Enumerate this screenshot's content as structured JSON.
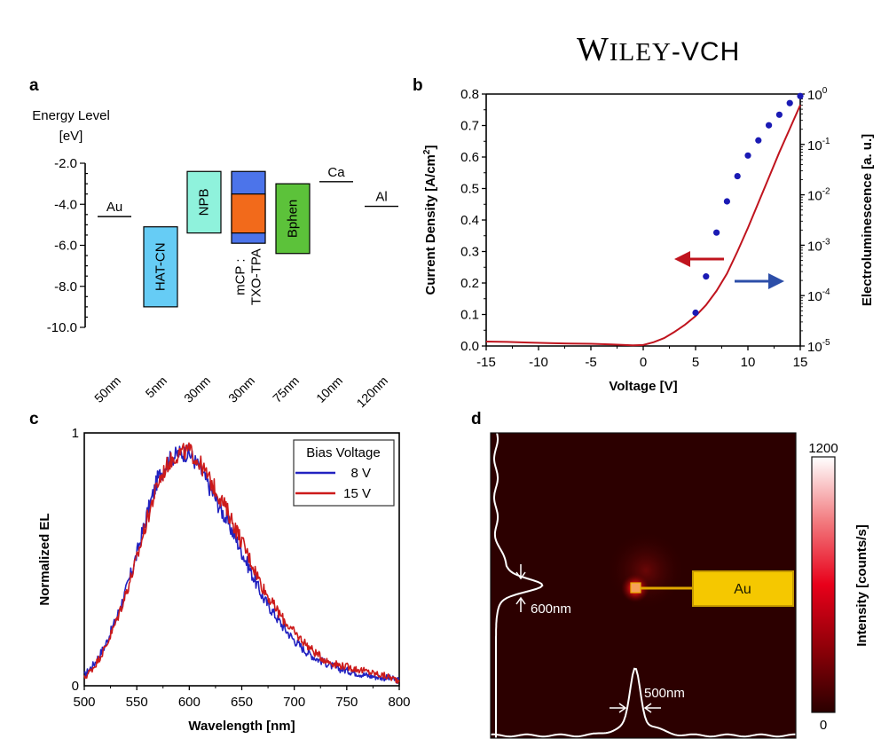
{
  "header": {
    "publisher_w": "W",
    "publisher_iley": "ILEY",
    "publisher_vch": "-VCH"
  },
  "panels": {
    "a": "a",
    "b": "b",
    "c": "c",
    "d": "d"
  },
  "chart_data": [
    {
      "id": "a",
      "type": "diagram",
      "title": "Energy Level [eV]",
      "ylabel_line1": "Energy Level",
      "ylabel_line2": "[eV]",
      "ylim": [
        -10.0,
        -2.0
      ],
      "yticks": [
        -2.0,
        -4.0,
        -6.0,
        -8.0,
        -10.0
      ],
      "ytick_labels": [
        "-2.0",
        "-4.0",
        "-6.0",
        "-8.0",
        "-10.0"
      ],
      "layers": [
        {
          "name": "Au",
          "kind": "line",
          "level": -4.6,
          "thickness": "50nm"
        },
        {
          "name": "HAT-CN",
          "kind": "box",
          "top": -5.1,
          "bottom": -9.0,
          "color": "#66ccf5",
          "thickness": "5nm"
        },
        {
          "name": "NPB",
          "kind": "box",
          "top": -2.4,
          "bottom": -5.4,
          "color": "#8ff2dc",
          "thickness": "30nm"
        },
        {
          "name": "mCP : TXO-TPA",
          "kind": "stacked",
          "top": -2.4,
          "bottom": -5.9,
          "color": "#4c74ea",
          "inner_top": -3.5,
          "inner_bottom": -5.4,
          "inner_color": "#f26a1b",
          "label_line1": "mCP :",
          "label_line2": "TXO-TPA",
          "thickness": "30nm"
        },
        {
          "name": "Bphen",
          "kind": "box",
          "top": -3.0,
          "bottom": -6.4,
          "color": "#5cc23a",
          "thickness": "75nm"
        },
        {
          "name": "Ca",
          "kind": "line",
          "level": -2.9,
          "thickness": "10nm"
        },
        {
          "name": "Al",
          "kind": "line",
          "level": -4.1,
          "thickness": "120nm"
        }
      ]
    },
    {
      "id": "b",
      "type": "line",
      "xlabel": "Voltage [V]",
      "ylabel": "Current Density [A/cm",
      "ylabel_sup": "2",
      "ylabel_end": "]",
      "y2label": "Electroluminescence [a. u.]",
      "xlim": [
        -15,
        15
      ],
      "ylim": [
        0.0,
        0.8
      ],
      "y2lim_log10": [
        -5,
        0
      ],
      "xticks": [
        -15,
        -10,
        -5,
        0,
        5,
        10,
        15
      ],
      "xtick_labels": [
        "-15",
        "-10",
        "-5",
        "0",
        "5",
        "10",
        "15"
      ],
      "yticks": [
        0.0,
        0.1,
        0.2,
        0.3,
        0.4,
        0.5,
        0.6,
        0.7,
        0.8
      ],
      "ytick_labels": [
        "0.0",
        "0.1",
        "0.2",
        "0.3",
        "0.4",
        "0.5",
        "0.6",
        "0.7",
        "0.8"
      ],
      "y2ticks_exp": [
        0,
        -1,
        -2,
        -3,
        -4,
        -5
      ],
      "y2tick_base": "10",
      "y2tick_exp_labels": [
        "0",
        "-1",
        "-2",
        "-3",
        "-4",
        "-5"
      ],
      "series": [
        {
          "name": "Current Density",
          "axis": "left",
          "color": "#c0141e",
          "x": [
            -15,
            -13,
            -11,
            -9,
            -7,
            -5,
            -3,
            -1,
            0,
            1,
            2,
            3,
            4,
            5,
            6,
            7,
            8,
            9,
            10,
            11,
            12,
            13,
            14,
            15
          ],
          "y": [
            0.014,
            0.013,
            0.011,
            0.009,
            0.008,
            0.007,
            0.005,
            0.002,
            0.003,
            0.012,
            0.025,
            0.045,
            0.068,
            0.095,
            0.13,
            0.175,
            0.23,
            0.3,
            0.375,
            0.455,
            0.535,
            0.615,
            0.69,
            0.765
          ]
        },
        {
          "name": "Electroluminescence",
          "axis": "right",
          "color": "#1a1ab4",
          "marker": "circle",
          "x": [
            5,
            6,
            7,
            8,
            9,
            10,
            11,
            12,
            13,
            14,
            15
          ],
          "log10_y": [
            -4.34,
            -3.62,
            -2.75,
            -2.13,
            -1.63,
            -1.22,
            -0.92,
            -0.62,
            -0.41,
            -0.18,
            -0.04
          ]
        }
      ],
      "annotations": [
        {
          "type": "arrow",
          "direction": "left",
          "color": "#c0141e",
          "meaning": "left axis"
        },
        {
          "type": "arrow",
          "direction": "right",
          "color": "#2c4ea8",
          "meaning": "right axis"
        }
      ]
    },
    {
      "id": "c",
      "type": "line",
      "xlabel": "Wavelength [nm]",
      "ylabel": "Normalized EL",
      "xlim": [
        500,
        800
      ],
      "ylim": [
        0,
        1
      ],
      "xticks": [
        500,
        550,
        600,
        650,
        700,
        750,
        800
      ],
      "xtick_labels": [
        "500",
        "550",
        "600",
        "650",
        "700",
        "750",
        "800"
      ],
      "yticks": [
        0,
        1
      ],
      "ytick_labels": [
        "0",
        "1"
      ],
      "legend_title": "Bias Voltage",
      "legend_position": "top-right",
      "x": [
        500,
        510,
        520,
        530,
        540,
        550,
        560,
        570,
        580,
        590,
        600,
        610,
        620,
        630,
        640,
        650,
        660,
        670,
        680,
        690,
        700,
        710,
        720,
        730,
        740,
        750,
        760,
        770,
        780,
        790,
        800
      ],
      "series": [
        {
          "name": "8 V",
          "label": "8 V",
          "color": "#2222c0",
          "values": [
            0.04,
            0.09,
            0.16,
            0.26,
            0.38,
            0.52,
            0.68,
            0.82,
            0.89,
            0.92,
            0.92,
            0.86,
            0.78,
            0.7,
            0.62,
            0.53,
            0.44,
            0.35,
            0.29,
            0.23,
            0.18,
            0.14,
            0.11,
            0.09,
            0.07,
            0.06,
            0.05,
            0.04,
            0.035,
            0.03,
            0.02
          ]
        },
        {
          "name": "15 V",
          "label": "15 V",
          "color": "#cc1a1a",
          "values": [
            0.03,
            0.08,
            0.15,
            0.25,
            0.37,
            0.5,
            0.66,
            0.8,
            0.88,
            0.92,
            0.93,
            0.88,
            0.81,
            0.74,
            0.66,
            0.57,
            0.48,
            0.39,
            0.32,
            0.26,
            0.21,
            0.17,
            0.13,
            0.1,
            0.085,
            0.075,
            0.065,
            0.055,
            0.045,
            0.035,
            0.02
          ]
        }
      ]
    },
    {
      "id": "d",
      "type": "heatmap",
      "background_color": "#2c0000",
      "colorbar_label": "Intensity [counts/s]",
      "colorbar_min": 0,
      "colorbar_max": 1200,
      "colorbar_min_label": "0",
      "colorbar_max_label": "1200",
      "spot_label": "Au",
      "vertical_fwhm_label": "600nm",
      "horizontal_fwhm_label": "500nm"
    }
  ]
}
